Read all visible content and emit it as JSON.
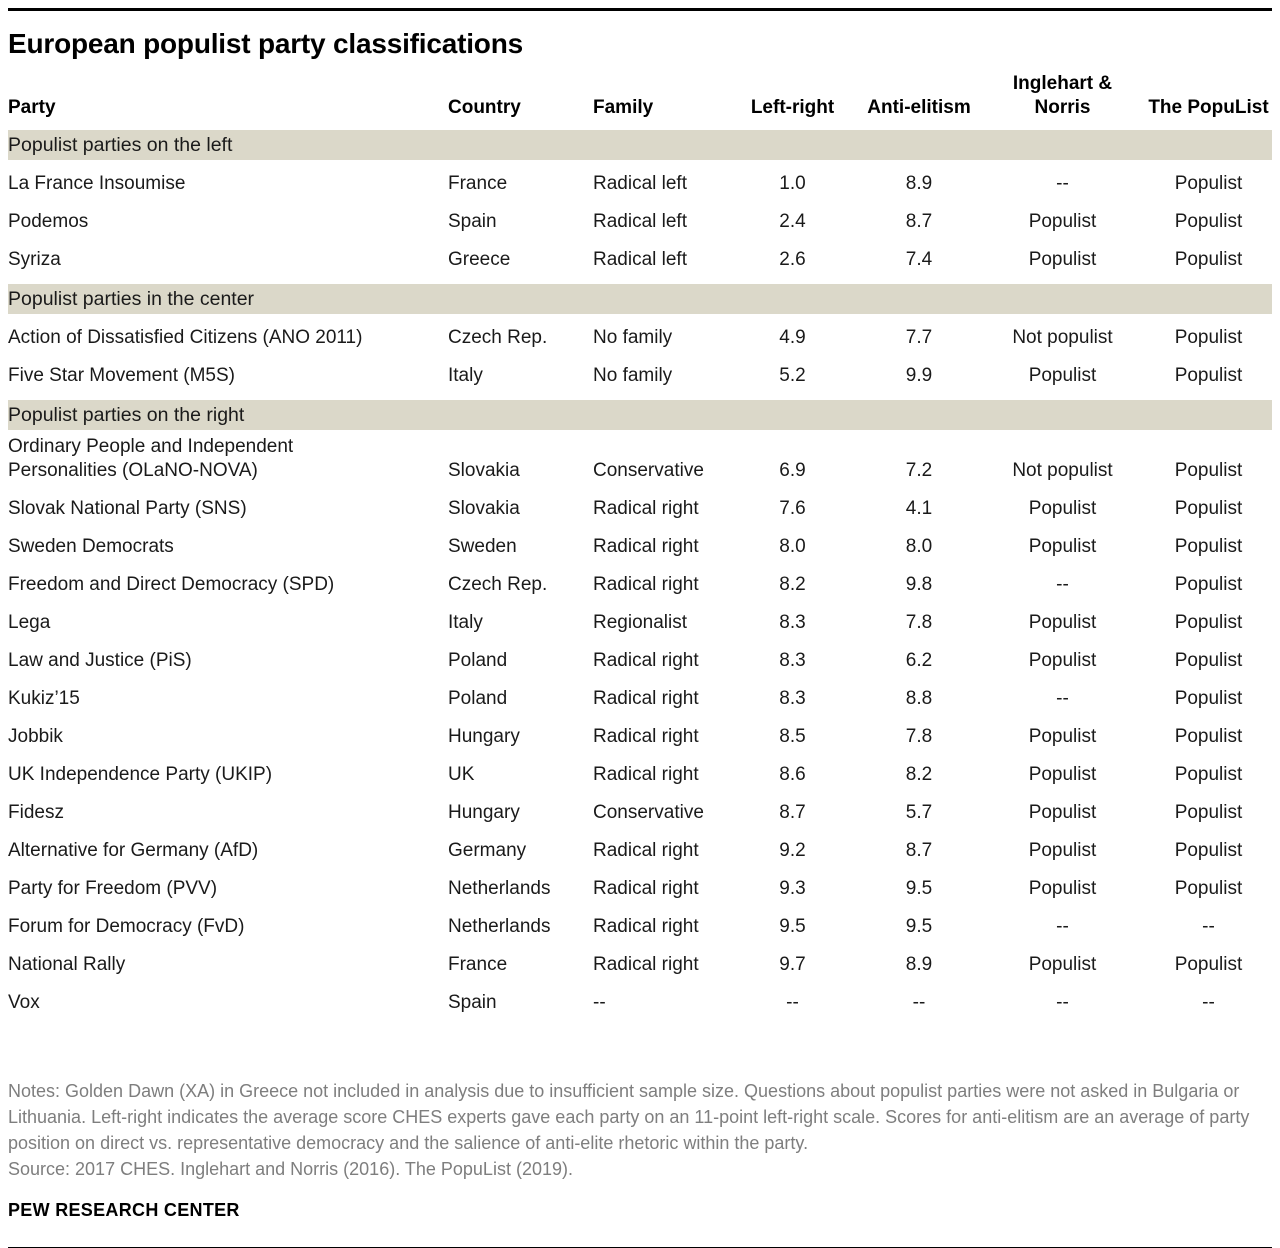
{
  "title": "European populist party classifications",
  "colors": {
    "band": "#dbd8c9",
    "rule": "#000000",
    "text": "#1a1a1a",
    "notes_text": "#7e7e7e"
  },
  "chart_data": {
    "type": "table",
    "title": "European populist party classifications",
    "columns": [
      "Party",
      "Country",
      "Family",
      "Left-right",
      "Anti-elitism",
      "Inglehart & Norris",
      "The PopuList"
    ],
    "sections": [
      {
        "label": "Populist parties on the left",
        "rows": [
          [
            "La France Insoumise",
            "France",
            "Radical left",
            "1.0",
            "8.9",
            "--",
            "Populist"
          ],
          [
            "Podemos",
            "Spain",
            "Radical left",
            "2.4",
            "8.7",
            "Populist",
            "Populist"
          ],
          [
            "Syriza",
            "Greece",
            "Radical left",
            "2.6",
            "7.4",
            "Populist",
            "Populist"
          ]
        ]
      },
      {
        "label": "Populist parties in the center",
        "rows": [
          [
            "Action of Dissatisfied Citizens (ANO 2011)",
            "Czech Rep.",
            "No family",
            "4.9",
            "7.7",
            "Not populist",
            "Populist"
          ],
          [
            "Five Star Movement (M5S)",
            "Italy",
            "No family",
            "5.2",
            "9.9",
            "Populist",
            "Populist"
          ]
        ]
      },
      {
        "label": "Populist parties on the right",
        "rows": [
          [
            "Ordinary People and Independent\nPersonalities (OLaNO-NOVA)",
            "Slovakia",
            "Conservative",
            "6.9",
            "7.2",
            "Not populist",
            "Populist"
          ],
          [
            "Slovak National Party (SNS)",
            "Slovakia",
            "Radical right",
            "7.6",
            "4.1",
            "Populist",
            "Populist"
          ],
          [
            "Sweden Democrats",
            "Sweden",
            "Radical right",
            "8.0",
            "8.0",
            "Populist",
            "Populist"
          ],
          [
            "Freedom and Direct Democracy (SPD)",
            "Czech Rep.",
            "Radical right",
            "8.2",
            "9.8",
            "--",
            "Populist"
          ],
          [
            "Lega",
            "Italy",
            "Regionalist",
            "8.3",
            "7.8",
            "Populist",
            "Populist"
          ],
          [
            "Law and Justice (PiS)",
            "Poland",
            "Radical right",
            "8.3",
            "6.2",
            "Populist",
            "Populist"
          ],
          [
            "Kukiz’15",
            "Poland",
            "Radical right",
            "8.3",
            "8.8",
            "--",
            "Populist"
          ],
          [
            "Jobbik",
            "Hungary",
            "Radical right",
            "8.5",
            "7.8",
            "Populist",
            "Populist"
          ],
          [
            "UK Independence Party (UKIP)",
            "UK",
            "Radical right",
            "8.6",
            "8.2",
            "Populist",
            "Populist"
          ],
          [
            "Fidesz",
            "Hungary",
            "Conservative",
            "8.7",
            "5.7",
            "Populist",
            "Populist"
          ],
          [
            "Alternative for Germany (AfD)",
            "Germany",
            "Radical right",
            "9.2",
            "8.7",
            "Populist",
            "Populist"
          ],
          [
            "Party for Freedom (PVV)",
            "Netherlands",
            "Radical right",
            "9.3",
            "9.5",
            "Populist",
            "Populist"
          ],
          [
            "Forum for Democracy (FvD)",
            "Netherlands",
            "Radical right",
            "9.5",
            "9.5",
            "--",
            "--"
          ],
          [
            "National Rally",
            "France",
            "Radical right",
            "9.7",
            "8.9",
            "Populist",
            "Populist"
          ],
          [
            "Vox",
            "Spain",
            "--",
            "--",
            "--",
            "--",
            "--"
          ]
        ]
      }
    ]
  },
  "footer": {
    "notes": "Notes: Golden Dawn (XA) in Greece not included in analysis due to insufficient sample size. Questions about populist parties were not asked in Bulgaria or Lithuania. Left-right indicates the average score CHES experts gave each party on an 11-point left-right scale. Scores for anti-elitism are an average of party position on direct vs. representative democracy and the salience of anti-elite rhetoric within the party.",
    "source": "Source: 2017 CHES. Inglehart and Norris (2016). The PopuList (2019).",
    "brand": "PEW RESEARCH CENTER"
  }
}
